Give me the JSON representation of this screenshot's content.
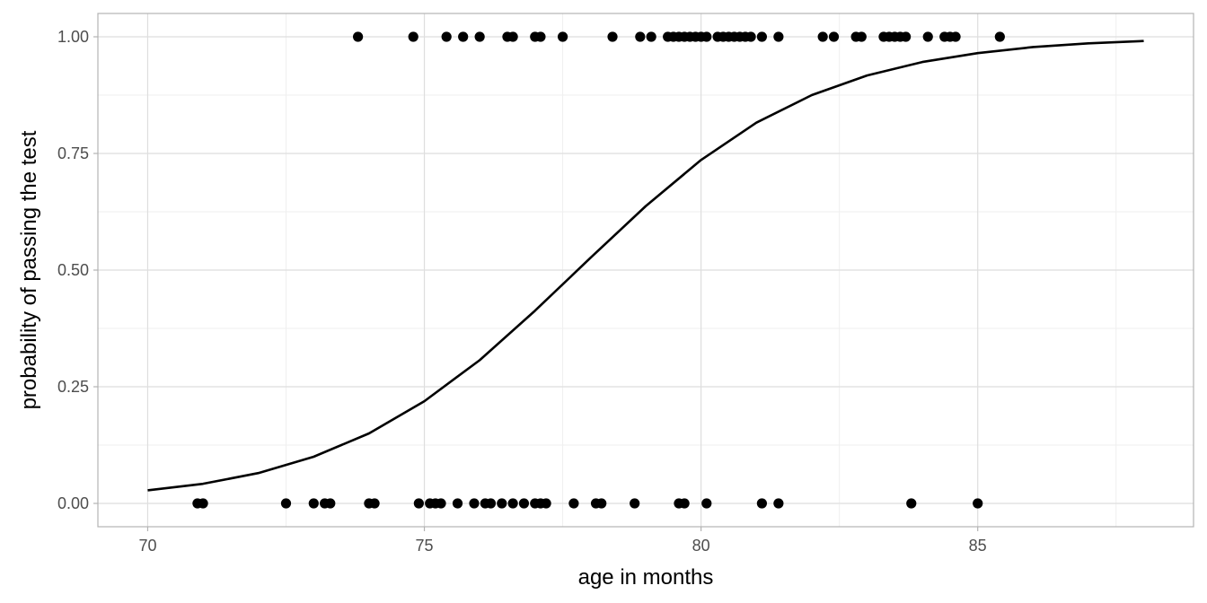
{
  "chart_data": {
    "type": "scatter",
    "title": "",
    "xlabel": "age in months",
    "ylabel": "probability of passing the test",
    "xlim": [
      69.1,
      88.9
    ],
    "ylim": [
      -0.05,
      1.05
    ],
    "x_ticks": [
      70,
      75,
      80,
      85
    ],
    "x_tick_labels": [
      "70",
      "75",
      "80",
      "85"
    ],
    "y_ticks": [
      0,
      0.25,
      0.5,
      0.75,
      1
    ],
    "y_tick_labels": [
      "0.00",
      "0.25",
      "0.50",
      "0.75",
      "1.00"
    ],
    "grid": true,
    "legend": "none",
    "series": [
      {
        "type": "scatter",
        "points": [
          {
            "x": 70.9,
            "y": 0
          },
          {
            "x": 71.0,
            "y": 0
          },
          {
            "x": 72.5,
            "y": 0
          },
          {
            "x": 73.0,
            "y": 0
          },
          {
            "x": 73.2,
            "y": 0
          },
          {
            "x": 73.3,
            "y": 0
          },
          {
            "x": 74.0,
            "y": 0
          },
          {
            "x": 74.1,
            "y": 0
          },
          {
            "x": 74.9,
            "y": 0
          },
          {
            "x": 75.1,
            "y": 0
          },
          {
            "x": 75.2,
            "y": 0
          },
          {
            "x": 75.3,
            "y": 0
          },
          {
            "x": 75.6,
            "y": 0
          },
          {
            "x": 75.9,
            "y": 0
          },
          {
            "x": 76.1,
            "y": 0
          },
          {
            "x": 76.2,
            "y": 0
          },
          {
            "x": 76.4,
            "y": 0
          },
          {
            "x": 76.6,
            "y": 0
          },
          {
            "x": 76.8,
            "y": 0
          },
          {
            "x": 77.0,
            "y": 0
          },
          {
            "x": 77.1,
            "y": 0
          },
          {
            "x": 77.2,
            "y": 0
          },
          {
            "x": 77.7,
            "y": 0
          },
          {
            "x": 78.1,
            "y": 0
          },
          {
            "x": 78.2,
            "y": 0
          },
          {
            "x": 78.8,
            "y": 0
          },
          {
            "x": 79.6,
            "y": 0
          },
          {
            "x": 79.7,
            "y": 0
          },
          {
            "x": 80.1,
            "y": 0
          },
          {
            "x": 81.1,
            "y": 0
          },
          {
            "x": 81.4,
            "y": 0
          },
          {
            "x": 83.8,
            "y": 0
          },
          {
            "x": 85.0,
            "y": 0
          },
          {
            "x": 73.8,
            "y": 1
          },
          {
            "x": 74.8,
            "y": 1
          },
          {
            "x": 75.4,
            "y": 1
          },
          {
            "x": 75.7,
            "y": 1
          },
          {
            "x": 76.0,
            "y": 1
          },
          {
            "x": 76.5,
            "y": 1
          },
          {
            "x": 76.6,
            "y": 1
          },
          {
            "x": 77.0,
            "y": 1
          },
          {
            "x": 77.1,
            "y": 1
          },
          {
            "x": 77.5,
            "y": 1
          },
          {
            "x": 78.4,
            "y": 1
          },
          {
            "x": 78.9,
            "y": 1
          },
          {
            "x": 79.1,
            "y": 1
          },
          {
            "x": 79.4,
            "y": 1
          },
          {
            "x": 79.5,
            "y": 1
          },
          {
            "x": 79.6,
            "y": 1
          },
          {
            "x": 79.7,
            "y": 1
          },
          {
            "x": 79.8,
            "y": 1
          },
          {
            "x": 79.9,
            "y": 1
          },
          {
            "x": 80.0,
            "y": 1
          },
          {
            "x": 80.1,
            "y": 1
          },
          {
            "x": 80.3,
            "y": 1
          },
          {
            "x": 80.4,
            "y": 1
          },
          {
            "x": 80.5,
            "y": 1
          },
          {
            "x": 80.6,
            "y": 1
          },
          {
            "x": 80.7,
            "y": 1
          },
          {
            "x": 80.8,
            "y": 1
          },
          {
            "x": 80.9,
            "y": 1
          },
          {
            "x": 81.1,
            "y": 1
          },
          {
            "x": 81.4,
            "y": 1
          },
          {
            "x": 82.2,
            "y": 1
          },
          {
            "x": 82.4,
            "y": 1
          },
          {
            "x": 82.8,
            "y": 1
          },
          {
            "x": 82.9,
            "y": 1
          },
          {
            "x": 83.3,
            "y": 1
          },
          {
            "x": 83.4,
            "y": 1
          },
          {
            "x": 83.5,
            "y": 1
          },
          {
            "x": 83.6,
            "y": 1
          },
          {
            "x": 83.7,
            "y": 1
          },
          {
            "x": 84.1,
            "y": 1
          },
          {
            "x": 84.4,
            "y": 1
          },
          {
            "x": 84.5,
            "y": 1
          },
          {
            "x": 84.6,
            "y": 1
          },
          {
            "x": 85.4,
            "y": 1
          }
        ]
      },
      {
        "type": "line",
        "points": [
          {
            "x": 70,
            "y": 0.028
          },
          {
            "x": 71,
            "y": 0.042
          },
          {
            "x": 72,
            "y": 0.065
          },
          {
            "x": 73,
            "y": 0.1
          },
          {
            "x": 74,
            "y": 0.15
          },
          {
            "x": 75,
            "y": 0.219
          },
          {
            "x": 76,
            "y": 0.307
          },
          {
            "x": 77,
            "y": 0.413
          },
          {
            "x": 78,
            "y": 0.526
          },
          {
            "x": 79,
            "y": 0.637
          },
          {
            "x": 80,
            "y": 0.736
          },
          {
            "x": 81,
            "y": 0.816
          },
          {
            "x": 82,
            "y": 0.875
          },
          {
            "x": 83,
            "y": 0.917
          },
          {
            "x": 84,
            "y": 0.946
          },
          {
            "x": 85,
            "y": 0.965
          },
          {
            "x": 86,
            "y": 0.978
          },
          {
            "x": 87,
            "y": 0.986
          },
          {
            "x": 88,
            "y": 0.991
          }
        ]
      }
    ],
    "colors": {
      "point": "#000000",
      "line": "#000000",
      "grid_major": "#dedede",
      "grid_minor": "#efefef",
      "border": "#b3b3b3",
      "tick_label": "#4d4d4d",
      "background": "#ffffff"
    }
  }
}
